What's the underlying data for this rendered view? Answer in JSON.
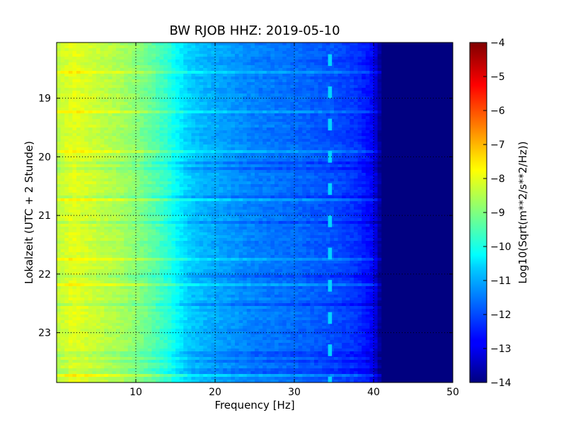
{
  "chart_data": {
    "type": "heatmap",
    "title": "BW RJOB HHZ: 2019-05-10",
    "xlabel": "Frequency [Hz]",
    "ylabel": "Lokalzeit (UTC + 2 Stunde)",
    "xlim": [
      0,
      50
    ],
    "ylim": [
      18.05,
      23.85
    ],
    "y_inverted": true,
    "x_ticks": [
      10,
      20,
      30,
      40,
      50
    ],
    "x_tick_labels": [
      "10",
      "20",
      "30",
      "40",
      "50"
    ],
    "y_ticks": [
      19,
      20,
      21,
      22,
      23
    ],
    "y_tick_labels": [
      "19",
      "20",
      "21",
      "22",
      "23"
    ],
    "grid": true,
    "colormap": "jet",
    "colorbar": {
      "label": "Log10(Sqrt(m**2/s**2/Hz))",
      "range": [
        -14,
        -4
      ],
      "ticks": [
        -4,
        -5,
        -6,
        -7,
        -8,
        -9,
        -10,
        -11,
        -12,
        -13,
        -14
      ],
      "tick_labels": [
        "−4",
        "−5",
        "−6",
        "−7",
        "−8",
        "−9",
        "−10",
        "−11",
        "−12",
        "−13",
        "−14"
      ]
    },
    "spectral_profile": {
      "frequency_hz": [
        0,
        2,
        5,
        8,
        10,
        12,
        14,
        15,
        17,
        20,
        25,
        30,
        35,
        38,
        40,
        41,
        50
      ],
      "log_amplitude": [
        -8.4,
        -8.0,
        -8.3,
        -8.6,
        -8.9,
        -9.3,
        -9.8,
        -10.2,
        -10.8,
        -11.1,
        -11.5,
        -11.7,
        -12.0,
        -12.3,
        -12.8,
        -14.0,
        -14.0
      ]
    },
    "noise_floor_above_hz": 41,
    "tonal_marker_hz": 34.5
  }
}
